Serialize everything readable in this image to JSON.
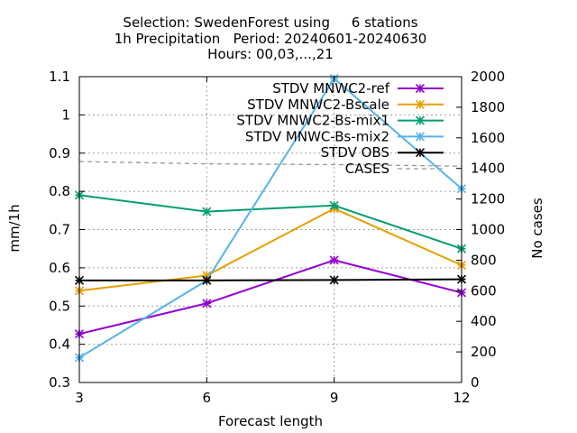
{
  "title": {
    "line1": "Selection: SwedenForest using     6 stations",
    "line2": "1h Precipitation   Period: 20240601-20240630",
    "line3": "Hours: 00,03,...,21"
  },
  "chart_data": {
    "type": "line",
    "xlabel": "Forecast length",
    "ylabel": "mm/1h",
    "y2label": "No cases",
    "x": [
      3,
      6,
      9,
      12
    ],
    "xlim": [
      3,
      12
    ],
    "ylim": [
      0.3,
      1.1
    ],
    "y2lim": [
      0,
      2000
    ],
    "xticks": [
      "3",
      "6",
      "9",
      "12"
    ],
    "yticks": [
      "0.3",
      "0.4",
      "0.5",
      "0.6",
      "0.7",
      "0.8",
      "0.9",
      "1",
      "1.1"
    ],
    "y2ticks": [
      "0",
      "200",
      "400",
      "600",
      "800",
      "1000",
      "1200",
      "1400",
      "1600",
      "1800",
      "2000"
    ],
    "grid": true,
    "legend_position": "top-right",
    "series": [
      {
        "name": "STDV MNWC2-ref",
        "color": "#9400d3",
        "axis": "y",
        "marker": "asterisk",
        "values": [
          0.427,
          0.507,
          0.62,
          0.535
        ]
      },
      {
        "name": "STDV MNWC2-Bscale",
        "color": "#e69f00",
        "axis": "y",
        "marker": "asterisk",
        "values": [
          0.54,
          0.58,
          0.755,
          0.607
        ]
      },
      {
        "name": "STDV MNWC2-Bs-mix1",
        "color": "#009e73",
        "axis": "y",
        "marker": "asterisk",
        "values": [
          0.79,
          0.747,
          0.763,
          0.65
        ]
      },
      {
        "name": "STDV MNWC-Bs-mix2",
        "color": "#56b4e9",
        "axis": "y",
        "marker": "asterisk",
        "values": [
          0.365,
          0.567,
          1.095,
          0.807
        ]
      },
      {
        "name": "STDV OBS",
        "color": "#000000",
        "axis": "y",
        "marker": "asterisk",
        "values": [
          0.567,
          0.567,
          0.568,
          0.57
        ]
      },
      {
        "name": "CASES",
        "color": "#999999",
        "axis": "y2",
        "dashed": true,
        "values": [
          1445,
          1430,
          1425,
          1415
        ]
      }
    ]
  }
}
